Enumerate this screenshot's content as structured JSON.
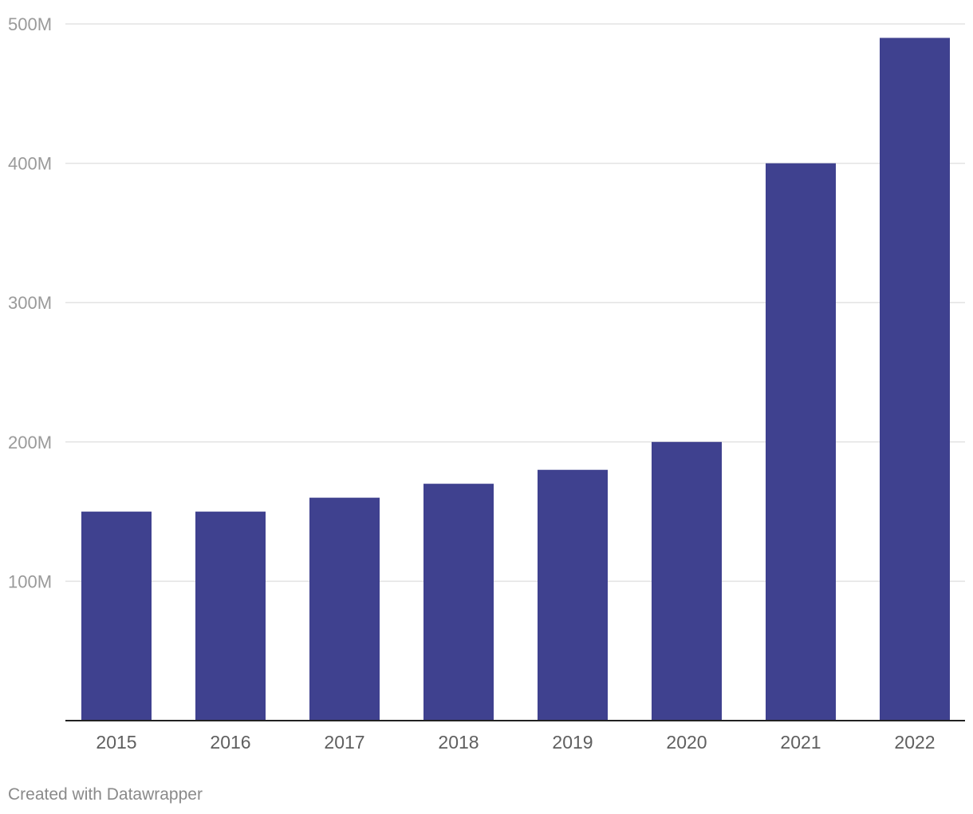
{
  "chart_data": {
    "type": "bar",
    "categories": [
      "2015",
      "2016",
      "2017",
      "2018",
      "2019",
      "2020",
      "2021",
      "2022"
    ],
    "values": [
      150,
      150,
      160,
      170,
      180,
      200,
      400,
      490
    ],
    "unit": "M",
    "ylim": [
      0,
      500
    ],
    "yticks": [
      {
        "value": 100,
        "label": "100M"
      },
      {
        "value": 200,
        "label": "200M"
      },
      {
        "value": 300,
        "label": "300M"
      },
      {
        "value": 400,
        "label": "400M"
      },
      {
        "value": 500,
        "label": "500M"
      }
    ],
    "title": "",
    "xlabel": "",
    "ylabel": "",
    "grid": true,
    "bar_color": "#3f418f"
  },
  "footer": {
    "credit": "Created with Datawrapper"
  }
}
